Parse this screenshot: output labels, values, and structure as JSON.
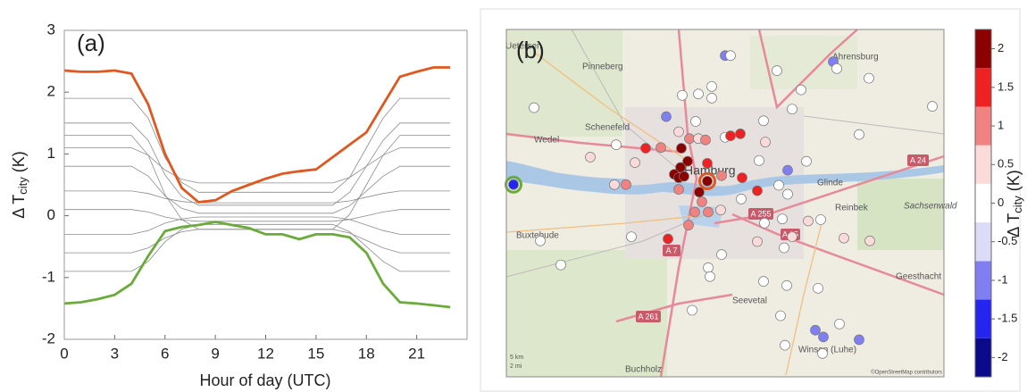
{
  "chart_data": [
    {
      "type": "line",
      "panel_label": "(a)",
      "xlabel": "Hour of day (UTC)",
      "ylabel": "Δ T",
      "ylabel_sub": "city",
      "ylabel_unit": "(K)",
      "x": [
        0,
        1,
        2,
        3,
        4,
        5,
        6,
        7,
        8,
        9,
        10,
        11,
        12,
        13,
        14,
        15,
        16,
        17,
        18,
        19,
        20,
        21,
        22,
        23
      ],
      "xlim": [
        0,
        24
      ],
      "ylim": [
        -2,
        3
      ],
      "xticks": [
        0,
        3,
        6,
        9,
        12,
        15,
        18,
        21
      ],
      "yticks": [
        -2,
        -1,
        0,
        1,
        2,
        3
      ],
      "series": [
        {
          "color": "#8c8c8c",
          "values": [
            1.9,
            1.9,
            1.9,
            1.9,
            1.9,
            1.58,
            0.94,
            0.54,
            0.38,
            0.38,
            0.38,
            0.38,
            0.38,
            0.38,
            0.38,
            0.38,
            0.38,
            0.62,
            1.1,
            1.58,
            1.9,
            1.9,
            1.9,
            1.9
          ]
        },
        {
          "color": "#8c8c8c",
          "values": [
            1.5,
            1.5,
            1.5,
            1.5,
            1.5,
            1.22,
            0.66,
            0.31,
            0.17,
            0.17,
            0.17,
            0.17,
            0.17,
            0.17,
            0.17,
            0.17,
            0.17,
            0.38,
            0.8,
            1.22,
            1.5,
            1.5,
            1.5,
            1.5
          ]
        },
        {
          "color": "#8c8c8c",
          "values": [
            1.1,
            1.1,
            1.1,
            1.1,
            1.1,
            0.98,
            0.74,
            0.59,
            0.53,
            0.53,
            0.53,
            0.53,
            0.53,
            0.53,
            0.53,
            0.53,
            0.53,
            0.62,
            0.8,
            0.98,
            1.1,
            1.1,
            1.1,
            1.1
          ]
        },
        {
          "color": "#8c8c8c",
          "values": [
            0.8,
            0.8,
            0.8,
            0.8,
            0.8,
            0.64,
            0.32,
            0.12,
            0.04,
            0.04,
            0.04,
            0.04,
            0.04,
            0.04,
            0.04,
            0.04,
            0.04,
            0.16,
            0.4,
            0.64,
            0.8,
            0.8,
            0.8,
            0.8
          ]
        },
        {
          "color": "#8c8c8c",
          "values": [
            0.4,
            0.4,
            0.4,
            0.4,
            0.4,
            0.36,
            0.28,
            0.23,
            0.21,
            0.21,
            0.21,
            0.21,
            0.21,
            0.21,
            0.21,
            0.21,
            0.21,
            0.24,
            0.3,
            0.36,
            0.4,
            0.4,
            0.4,
            0.4
          ]
        },
        {
          "color": "#8c8c8c",
          "values": [
            0.1,
            0.1,
            0.1,
            0.1,
            0.1,
            0.06,
            -0.02,
            -0.07,
            -0.09,
            -0.09,
            -0.09,
            -0.09,
            -0.09,
            -0.09,
            -0.09,
            -0.09,
            -0.09,
            -0.06,
            0,
            0.06,
            0.1,
            0.1,
            0.1,
            0.1
          ]
        },
        {
          "color": "#8c8c8c",
          "values": [
            -0.3,
            -0.3,
            -0.3,
            -0.3,
            -0.3,
            -0.24,
            -0.12,
            -0.05,
            -0.02,
            -0.02,
            -0.02,
            -0.02,
            -0.02,
            -0.02,
            -0.02,
            -0.02,
            -0.02,
            -0.06,
            -0.15,
            -0.24,
            -0.3,
            -0.3,
            -0.3,
            -0.3
          ]
        },
        {
          "color": "#8c8c8c",
          "values": [
            -0.6,
            -0.6,
            -0.6,
            -0.6,
            -0.6,
            -0.52,
            -0.36,
            -0.26,
            -0.22,
            -0.22,
            -0.22,
            -0.22,
            -0.22,
            -0.22,
            -0.22,
            -0.22,
            -0.22,
            -0.28,
            -0.4,
            -0.52,
            -0.6,
            -0.6,
            -0.6,
            -0.6
          ]
        },
        {
          "color": "#8c8c8c",
          "values": [
            -0.9,
            -0.9,
            -0.9,
            -0.9,
            -0.9,
            -0.74,
            -0.42,
            -0.22,
            -0.14,
            -0.14,
            -0.14,
            -0.14,
            -0.14,
            -0.14,
            -0.14,
            -0.14,
            -0.14,
            -0.26,
            -0.5,
            -0.74,
            -0.9,
            -0.9,
            -0.9,
            -0.9
          ]
        },
        {
          "color": "#8c8c8c",
          "values": [
            1.3,
            1.3,
            1.3,
            1.3,
            1.3,
            0.98,
            0.34,
            -0.06,
            -0.22,
            -0.22,
            -0.22,
            -0.22,
            -0.22,
            -0.22,
            -0.22,
            -0.22,
            -0.22,
            0.02,
            0.5,
            0.98,
            1.3,
            1.3,
            1.3,
            1.3
          ]
        },
        {
          "color": "#e0581f",
          "values": [
            2.35,
            2.33,
            2.33,
            2.35,
            2.3,
            1.8,
            1.0,
            0.45,
            0.22,
            0.25,
            0.4,
            0.5,
            0.6,
            0.68,
            0.72,
            0.75,
            0.95,
            1.15,
            1.35,
            1.8,
            2.25,
            2.33,
            2.4,
            2.4
          ]
        },
        {
          "color": "#6aab3a",
          "values": [
            -1.42,
            -1.4,
            -1.35,
            -1.28,
            -1.1,
            -0.65,
            -0.25,
            -0.18,
            -0.15,
            -0.1,
            -0.15,
            -0.2,
            -0.3,
            -0.3,
            -0.38,
            -0.3,
            -0.3,
            -0.35,
            -0.6,
            -1.1,
            -1.4,
            -1.42,
            -1.45,
            -1.48
          ]
        }
      ]
    },
    {
      "type": "scatter",
      "panel_label": "(b)",
      "xlim": [
        9.5,
        10.48
      ],
      "ylim": [
        53.244,
        53.75
      ],
      "x": [
        9.516,
        9.562,
        9.576,
        9.622,
        9.688,
        9.746,
        9.742,
        9.768,
        9.788,
        9.78,
        9.812,
        9.846,
        9.858,
        9.894,
        9.93,
        9.96,
        9.96,
        9.99,
        10.002,
        9.886,
        9.91,
        9.924,
        9.93,
        9.946,
        9.99,
        10.002,
        10.024,
        10.076,
        10.106,
        10.16,
        10.14,
        10.08,
        9.892,
        9.906,
        9.89,
        9.876,
        9.886,
        9.898,
        9.95,
        9.95,
        9.932,
        9.982,
        10.028,
        10.062,
        10.066,
        10.13,
        10.11,
        10.13,
        9.886,
        9.938,
        9.922,
        9.952,
        9.908,
        9.862,
        9.98,
        10.026,
        10.118,
        10.078,
        10.062,
        10.14,
        10.176,
        10.204,
        10.256,
        10.314,
        10.29,
        10.172,
        10.232,
        10.24,
        10.312,
        10.454,
        10.122,
        9.982,
        9.952,
        9.956,
        10.076,
        10.128,
        10.198,
        9.916,
        10.114,
        10.192,
        10.21,
        10.246,
        10.29,
        10.124,
        10.208
      ],
      "y": [
        53.524,
        53.636,
        53.442,
        53.407,
        53.564,
        53.582,
        53.524,
        53.524,
        53.556,
        53.448,
        53.577,
        53.578,
        53.623,
        53.654,
        53.656,
        53.667,
        53.65,
        53.712,
        53.712,
        53.601,
        53.591,
        53.616,
        53.591,
        53.589,
        53.593,
        53.595,
        53.598,
        53.617,
        53.69,
        53.662,
        53.634,
        53.586,
        53.577,
        53.558,
        53.549,
        53.539,
        53.534,
        53.536,
        53.555,
        53.529,
        53.513,
        53.537,
        53.534,
        53.515,
        53.559,
        53.545,
        53.523,
        53.51,
        53.517,
        53.499,
        53.484,
        53.484,
        53.465,
        53.445,
        53.487,
        53.503,
        53.474,
        53.468,
        53.441,
        53.448,
        53.471,
        53.473,
        53.446,
        53.442,
        53.597,
        53.558,
        53.703,
        53.693,
        53.679,
        53.638,
        53.432,
        53.422,
        53.403,
        53.39,
        53.383,
        53.377,
        53.373,
        53.341,
        53.333,
        53.312,
        53.302,
        53.321,
        53.298,
        53.29,
        53.278
      ],
      "values": [
        -1.5,
        0,
        0,
        0,
        0.5,
        0,
        0.5,
        1,
        0.5,
        0,
        1.5,
        1,
        -1,
        0,
        0,
        0,
        0,
        -1,
        0,
        0.5,
        1,
        0,
        0.5,
        1,
        0,
        1.5,
        1.5,
        0,
        0,
        0,
        0,
        0.5,
        2,
        2,
        2,
        2,
        2,
        2,
        1.5,
        2,
        2,
        1,
        1.5,
        1.5,
        0,
        -1,
        0,
        0,
        1,
        1,
        1,
        1,
        1,
        1.5,
        0.5,
        0,
        0,
        0,
        0.5,
        0.5,
        0.5,
        0,
        0.5,
        0.5,
        0,
        0,
        -1,
        0,
        0,
        0,
        0,
        0,
        0,
        0,
        0,
        0,
        0,
        0,
        0,
        -1,
        -1,
        0,
        -1,
        0,
        0
      ],
      "highlights": [
        {
          "index": 0,
          "color": "#6aab3a"
        },
        {
          "index": 39,
          "color": "#e0581f"
        }
      ],
      "colorbar": {
        "clim": [
          -2.25,
          2.25
        ],
        "colors": [
          "#0a0a8a",
          "#2525f0",
          "#7f7ff2",
          "#dcdcf8",
          "#ffffff",
          "#fbdada",
          "#f08282",
          "#ee2222",
          "#8b0000"
        ],
        "ticks": [
          -2,
          -1.5,
          -1,
          -0.5,
          0,
          0.5,
          1,
          1.5,
          2
        ],
        "label": "Δ T",
        "label_sub": "city",
        "label_unit": "(K)"
      },
      "map_labels": [
        "Uetersen",
        "Pinneberg",
        "Ahrensburg",
        "Schenefeld",
        "Wedel",
        "Hamburg",
        "Glinde",
        "Reinbek",
        "Sachsenwald",
        "Buxtehude",
        "Geesthacht",
        "Seevetal",
        "Winsen (Luhe)",
        "Buchholz",
        "5 km",
        "2 mi",
        "©OpenStreetMap contributors"
      ],
      "road_labels": [
        "A 24",
        "A 255",
        "A 25",
        "A 7",
        "A 261"
      ]
    }
  ]
}
